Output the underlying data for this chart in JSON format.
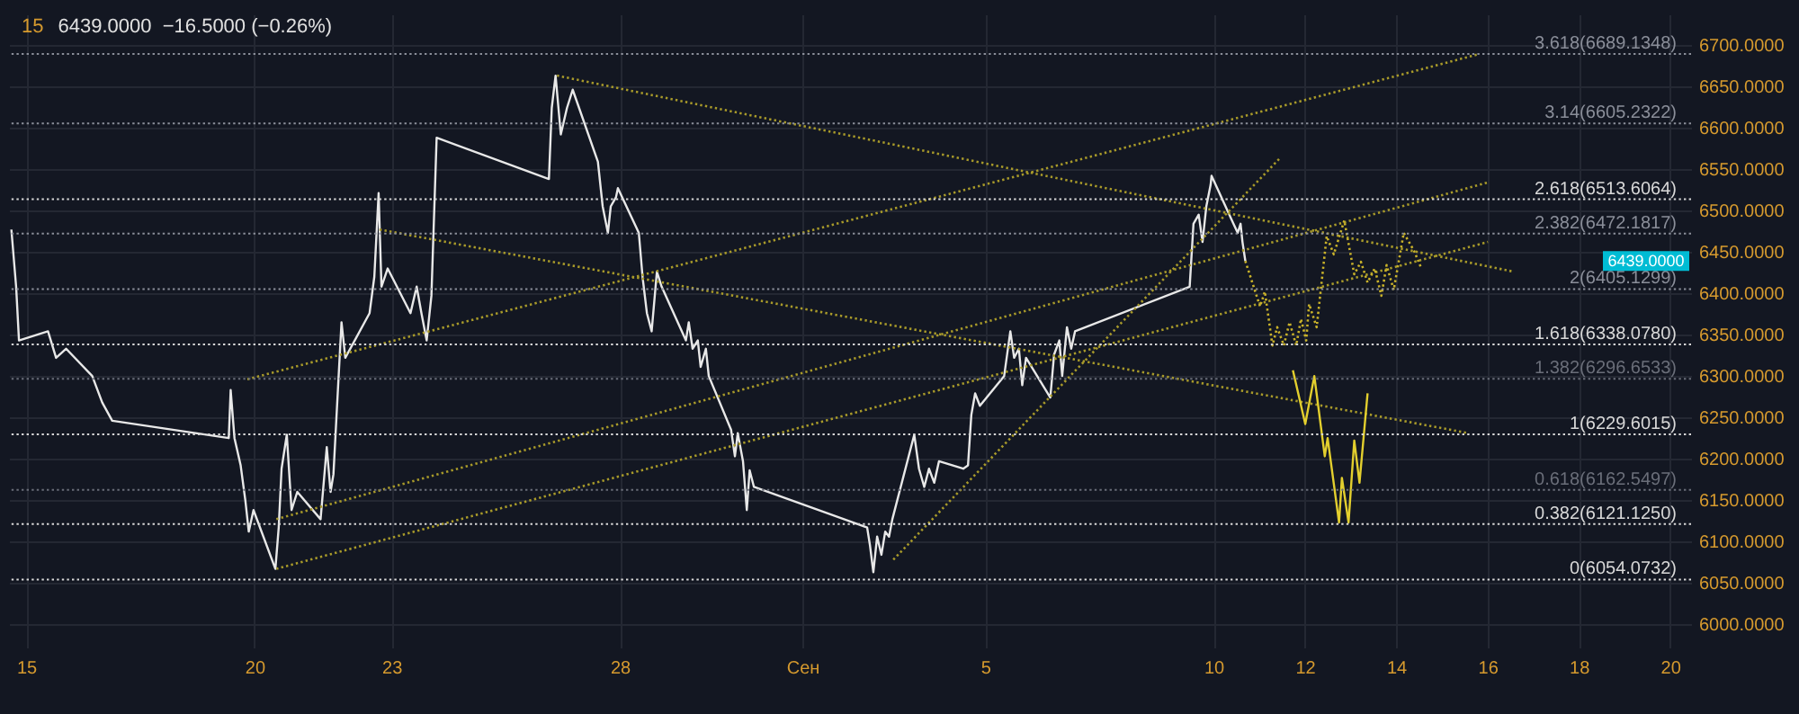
{
  "chart_data": {
    "type": "line",
    "title": "15",
    "subtitle": "6439.0000  −16.5000 (−0.26%)",
    "xlim": [
      "--08-14T15:00",
      "--09-20T11:00"
    ],
    "ylim": [
      5972,
      6737
    ],
    "xticks": [
      {
        "value": "--08-15",
        "label": "15"
      },
      {
        "value": "--08-20",
        "label": "20"
      },
      {
        "value": "--08-23",
        "label": "23"
      },
      {
        "value": "--08-28",
        "label": "28"
      },
      {
        "value": "--09-01",
        "label": "Сен"
      },
      {
        "value": "--09-05",
        "label": "5"
      },
      {
        "value": "--09-10",
        "label": "10"
      },
      {
        "value": "--09-12",
        "label": "12"
      },
      {
        "value": "--09-14",
        "label": "14"
      },
      {
        "value": "--09-16",
        "label": "16"
      },
      {
        "value": "--09-18",
        "label": "18"
      },
      {
        "value": "--09-20",
        "label": "20"
      }
    ],
    "yticks": [
      {
        "value": 6000,
        "label": "6000.0000"
      },
      {
        "value": 6050,
        "label": "6050.0000"
      },
      {
        "value": 6100,
        "label": "6100.0000"
      },
      {
        "value": 6150,
        "label": "6150.0000"
      },
      {
        "value": 6200,
        "label": "6200.0000"
      },
      {
        "value": 6250,
        "label": "6250.0000"
      },
      {
        "value": 6300,
        "label": "6300.0000"
      },
      {
        "value": 6350,
        "label": "6350.0000"
      },
      {
        "value": 6400,
        "label": "6400.0000"
      },
      {
        "value": 6450,
        "label": "6450.0000"
      },
      {
        "value": 6500,
        "label": "6500.0000"
      },
      {
        "value": 6550,
        "label": "6550.0000"
      },
      {
        "value": 6600,
        "label": "6600.0000"
      },
      {
        "value": 6650,
        "label": "6650.0000"
      },
      {
        "value": 6700,
        "label": "6700.0000"
      }
    ],
    "grid": true,
    "series": [
      {
        "color": "#e8e8e8",
        "x": [
          "--08-14T16:15",
          "--08-14T18:45",
          "--08-14T20:15",
          "--08-15T11:30",
          "--08-15T15:45",
          "--08-15T21:00",
          "--08-16T10:45",
          "--08-16T16:00",
          "--08-16T21:15",
          "--08-19T10:30",
          "--08-19T11:30",
          "--08-19T13:30",
          "--08-19T16:45",
          "--08-19T19:15",
          "--08-19T21:00",
          "--08-19T23:30",
          "--08-20T11:00",
          "--08-20T12:45",
          "--08-20T14:15",
          "--08-20T17:00",
          "--08-20T19:30",
          "--08-20T22:30",
          "--08-21T10:45",
          "--08-21T14:00",
          "--08-21T16:00",
          "--08-21T17:30",
          "--08-21T19:00",
          "--08-21T21:45",
          "--08-21T23:45",
          "--08-22T12:30",
          "--08-22T15:00",
          "--08-22T17:15",
          "--08-22T18:45",
          "--08-22T22:00",
          "--08-23T10:00",
          "--08-23T13:15",
          "--08-23T15:45",
          "--08-23T18:30",
          "--08-23T21:00",
          "--08-23T23:45",
          "--08-26T10:45",
          "--08-26T12:15",
          "--08-26T14:15",
          "--08-26T17:00",
          "--08-26T20:15",
          "--08-26T23:15",
          "--08-27T12:30",
          "--08-27T15:00",
          "--08-27T17:45",
          "--08-27T19:15",
          "--08-27T22:00",
          "--08-27T23:00",
          "--08-28T10:00",
          "--08-28T12:00",
          "--08-28T14:15",
          "--08-28T16:45",
          "--08-28T19:30",
          "--08-28T22:00",
          "--08-29T10:45",
          "--08-29T12:15",
          "--08-29T14:15",
          "--08-29T17:00",
          "--08-29T18:30",
          "--08-29T21:15",
          "--08-29T22:45",
          "--08-30T10:30",
          "--08-30T12:30",
          "--08-30T14:00",
          "--08-30T16:45",
          "--08-30T18:45",
          "--08-30T20:15",
          "--08-30T22:30",
          "--09-02T10:00",
          "--09-02T11:30",
          "--09-02T13:15",
          "--09-02T15:15",
          "--09-02T17:30",
          "--09-02T19:30",
          "--09-02T21:30",
          "--09-02T23:15",
          "--09-03T10:45",
          "--09-03T13:15",
          "--09-03T16:00",
          "--09-03T18:30",
          "--09-03T21:15",
          "--09-03T23:45",
          "--09-04T12:30",
          "--09-04T15:00",
          "--09-04T16:45",
          "--09-04T18:45",
          "--09-04T21:15",
          "--09-05T10:00",
          "--09-05T13:15",
          "--09-05T15:15",
          "--09-05T17:45",
          "--09-05T19:30",
          "--09-05T21:30",
          "--09-06T10:15",
          "--09-06T12:15",
          "--09-06T15:00",
          "--09-06T16:30",
          "--09-06T19:00",
          "--09-06T21:15",
          "--09-06T23:15",
          "--09-09T11:30",
          "--09-09T13:30",
          "--09-09T16:15",
          "--09-09T18:15",
          "--09-09T20:15",
          "--09-09T22:30",
          "--09-09T23:00",
          "--09-10T10:30",
          "--09-10T12:45",
          "--09-10T14:15",
          "--09-10T15:15",
          "--09-10T16:45"
        ],
        "values": [
          6477,
          6408,
          6343,
          6354,
          6322,
          6333,
          6300,
          6268,
          6246,
          6225,
          6283,
          6225,
          6192,
          6149,
          6112,
          6138,
          6067,
          6117,
          6188,
          6229,
          6138,
          6160,
          6127,
          6214,
          6160,
          6181,
          6246,
          6365,
          6322,
          6376,
          6420,
          6521,
          6408,
          6430,
          6376,
          6408,
          6376,
          6343,
          6397,
          6588,
          6538,
          6624,
          6663,
          6592,
          6624,
          6646,
          6559,
          6505,
          6473,
          6505,
          6516,
          6527,
          6473,
          6419,
          6376,
          6354,
          6426,
          6408,
          6343,
          6365,
          6333,
          6343,
          6311,
          6333,
          6300,
          6235,
          6203,
          6231,
          6197,
          6138,
          6186,
          6166,
          6117,
          6095,
          6063,
          6106,
          6084,
          6112,
          6106,
          6127,
          6229,
          6188,
          6166,
          6188,
          6171,
          6197,
          6188,
          6192,
          6253,
          6279,
          6264,
          6300,
          6354,
          6322,
          6333,
          6289,
          6322,
          6274,
          6326,
          6343,
          6300,
          6359,
          6333,
          6354,
          6408,
          6484,
          6495,
          6462,
          6505,
          6531,
          6542,
          6484,
          6473,
          6484,
          6462,
          6439
        ]
      },
      {
        "color": "#a89a2a",
        "line_style": "dotted",
        "x": [
          "--08-26T15:00",
          "--09-16T14:00"
        ],
        "values": [
          6663,
          6426
        ]
      },
      {
        "color": "#a89a2a",
        "line_style": "dotted",
        "x": [
          "--08-22T17:45",
          "--09-15T14:00"
        ],
        "values": [
          6477,
          6231
        ]
      },
      {
        "color": "#a89a2a",
        "line_style": "dotted",
        "x": [
          "--08-19T20:15",
          "--09-15T19:30"
        ],
        "values": [
          6296,
          6689
        ]
      },
      {
        "color": "#a89a2a",
        "line_style": "dotted",
        "x": [
          "--08-20T11:30",
          "--09-16T00:15"
        ],
        "values": [
          6127,
          6534
        ]
      },
      {
        "color": "#a89a2a",
        "line_style": "dotted",
        "x": [
          "--08-20T11:30",
          "--09-16T00:15"
        ],
        "values": [
          6067,
          6462
        ]
      },
      {
        "color": "#a89a2a",
        "line_style": "dotted",
        "x": [
          "--09-02T23:45",
          "--09-11T11:15"
        ],
        "values": [
          6078,
          6564
        ]
      },
      {
        "color": "#c9b22a",
        "line_style": "dotted",
        "x": [
          "--09-10T16:45",
          "--09-11T00:30",
          "--09-11T03:00",
          "--09-11T07:00",
          "--09-11T09:30",
          "--09-11T13:00",
          "--09-11T16:00",
          "--09-11T19:30",
          "--09-11T22:00",
          "--09-12T00:45",
          "--09-12T02:15",
          "--09-12T06:15",
          "--09-12T11:30",
          "--09-12T15:15",
          "--09-12T20:45",
          "--09-13T02:00",
          "--09-13T05:30",
          "--09-13T09:00",
          "--09-13T12:45",
          "--09-13T16:15",
          "--09-13T19:00",
          "--09-13T22:45",
          "--09-14T04:00",
          "--09-14T09:30",
          "--09-14T13:15"
        ],
        "values": [
          6439,
          6384,
          6402,
          6337,
          6359,
          6337,
          6365,
          6337,
          6369,
          6343,
          6387,
          6359,
          6469,
          6447,
          6488,
          6423,
          6438,
          6413,
          6430,
          6397,
          6434,
          6404,
          6473,
          6451,
          6430
        ]
      },
      {
        "color": "#e3cf2e",
        "line_style": "solid",
        "x": [
          "--09-11T17:45",
          "--09-12T00:15",
          "--09-12T05:00",
          "--09-12T10:30",
          "--09-12T12:00",
          "--09-12T18:00",
          "--09-12T19:30",
          "--09-12T23:00",
          "--09-13T02:00",
          "--09-13T04:45",
          "--09-13T09:00"
        ],
        "values": [
          6307,
          6242,
          6300,
          6203,
          6225,
          6123,
          6177,
          6123,
          6222,
          6171,
          6279
        ]
      }
    ],
    "ref_lines": [
      {
        "axis": "y",
        "value": 6689.1348,
        "label": "3.618(6689.1348)",
        "color": "#8a8e99",
        "line_style": "dotted"
      },
      {
        "axis": "y",
        "value": 6605.2322,
        "label": "3.14(6605.2322)",
        "color": "#8a8e99",
        "line_style": "dotted"
      },
      {
        "axis": "y",
        "value": 6513.6064,
        "label": "2.618(6513.6064)",
        "color": "#d8d8d8",
        "line_style": "dotted"
      },
      {
        "axis": "y",
        "value": 6472.1817,
        "label": "2.382(6472.1817)",
        "color": "#8a8e99",
        "line_style": "dotted"
      },
      {
        "axis": "y",
        "value": 6405.1299,
        "label": "2(6405.1299)",
        "color": "#8a8e99",
        "line_style": "dotted"
      },
      {
        "axis": "y",
        "value": 6338.078,
        "label": "1.618(6338.0780)",
        "color": "#d8d8d8",
        "line_style": "dotted"
      },
      {
        "axis": "y",
        "value": 6296.6533,
        "label": "1.382(6296.6533)",
        "color": "#6a6e79",
        "line_style": "dotted"
      },
      {
        "axis": "y",
        "value": 6229.6015,
        "label": "1(6229.6015)",
        "color": "#d8d8d8",
        "line_style": "dotted"
      },
      {
        "axis": "y",
        "value": 6162.5497,
        "label": "0.618(6162.5497)",
        "color": "#6a6e79",
        "line_style": "dotted"
      },
      {
        "axis": "y",
        "value": 6121.125,
        "label": "0.382(6121.1250)",
        "color": "#d8d8d8",
        "line_style": "dotted"
      },
      {
        "axis": "y",
        "value": 6054.0732,
        "label": "0(6054.0732)",
        "color": "#d8d8d8",
        "line_style": "dotted"
      }
    ],
    "annotations": [
      "6439.0000"
    ]
  }
}
